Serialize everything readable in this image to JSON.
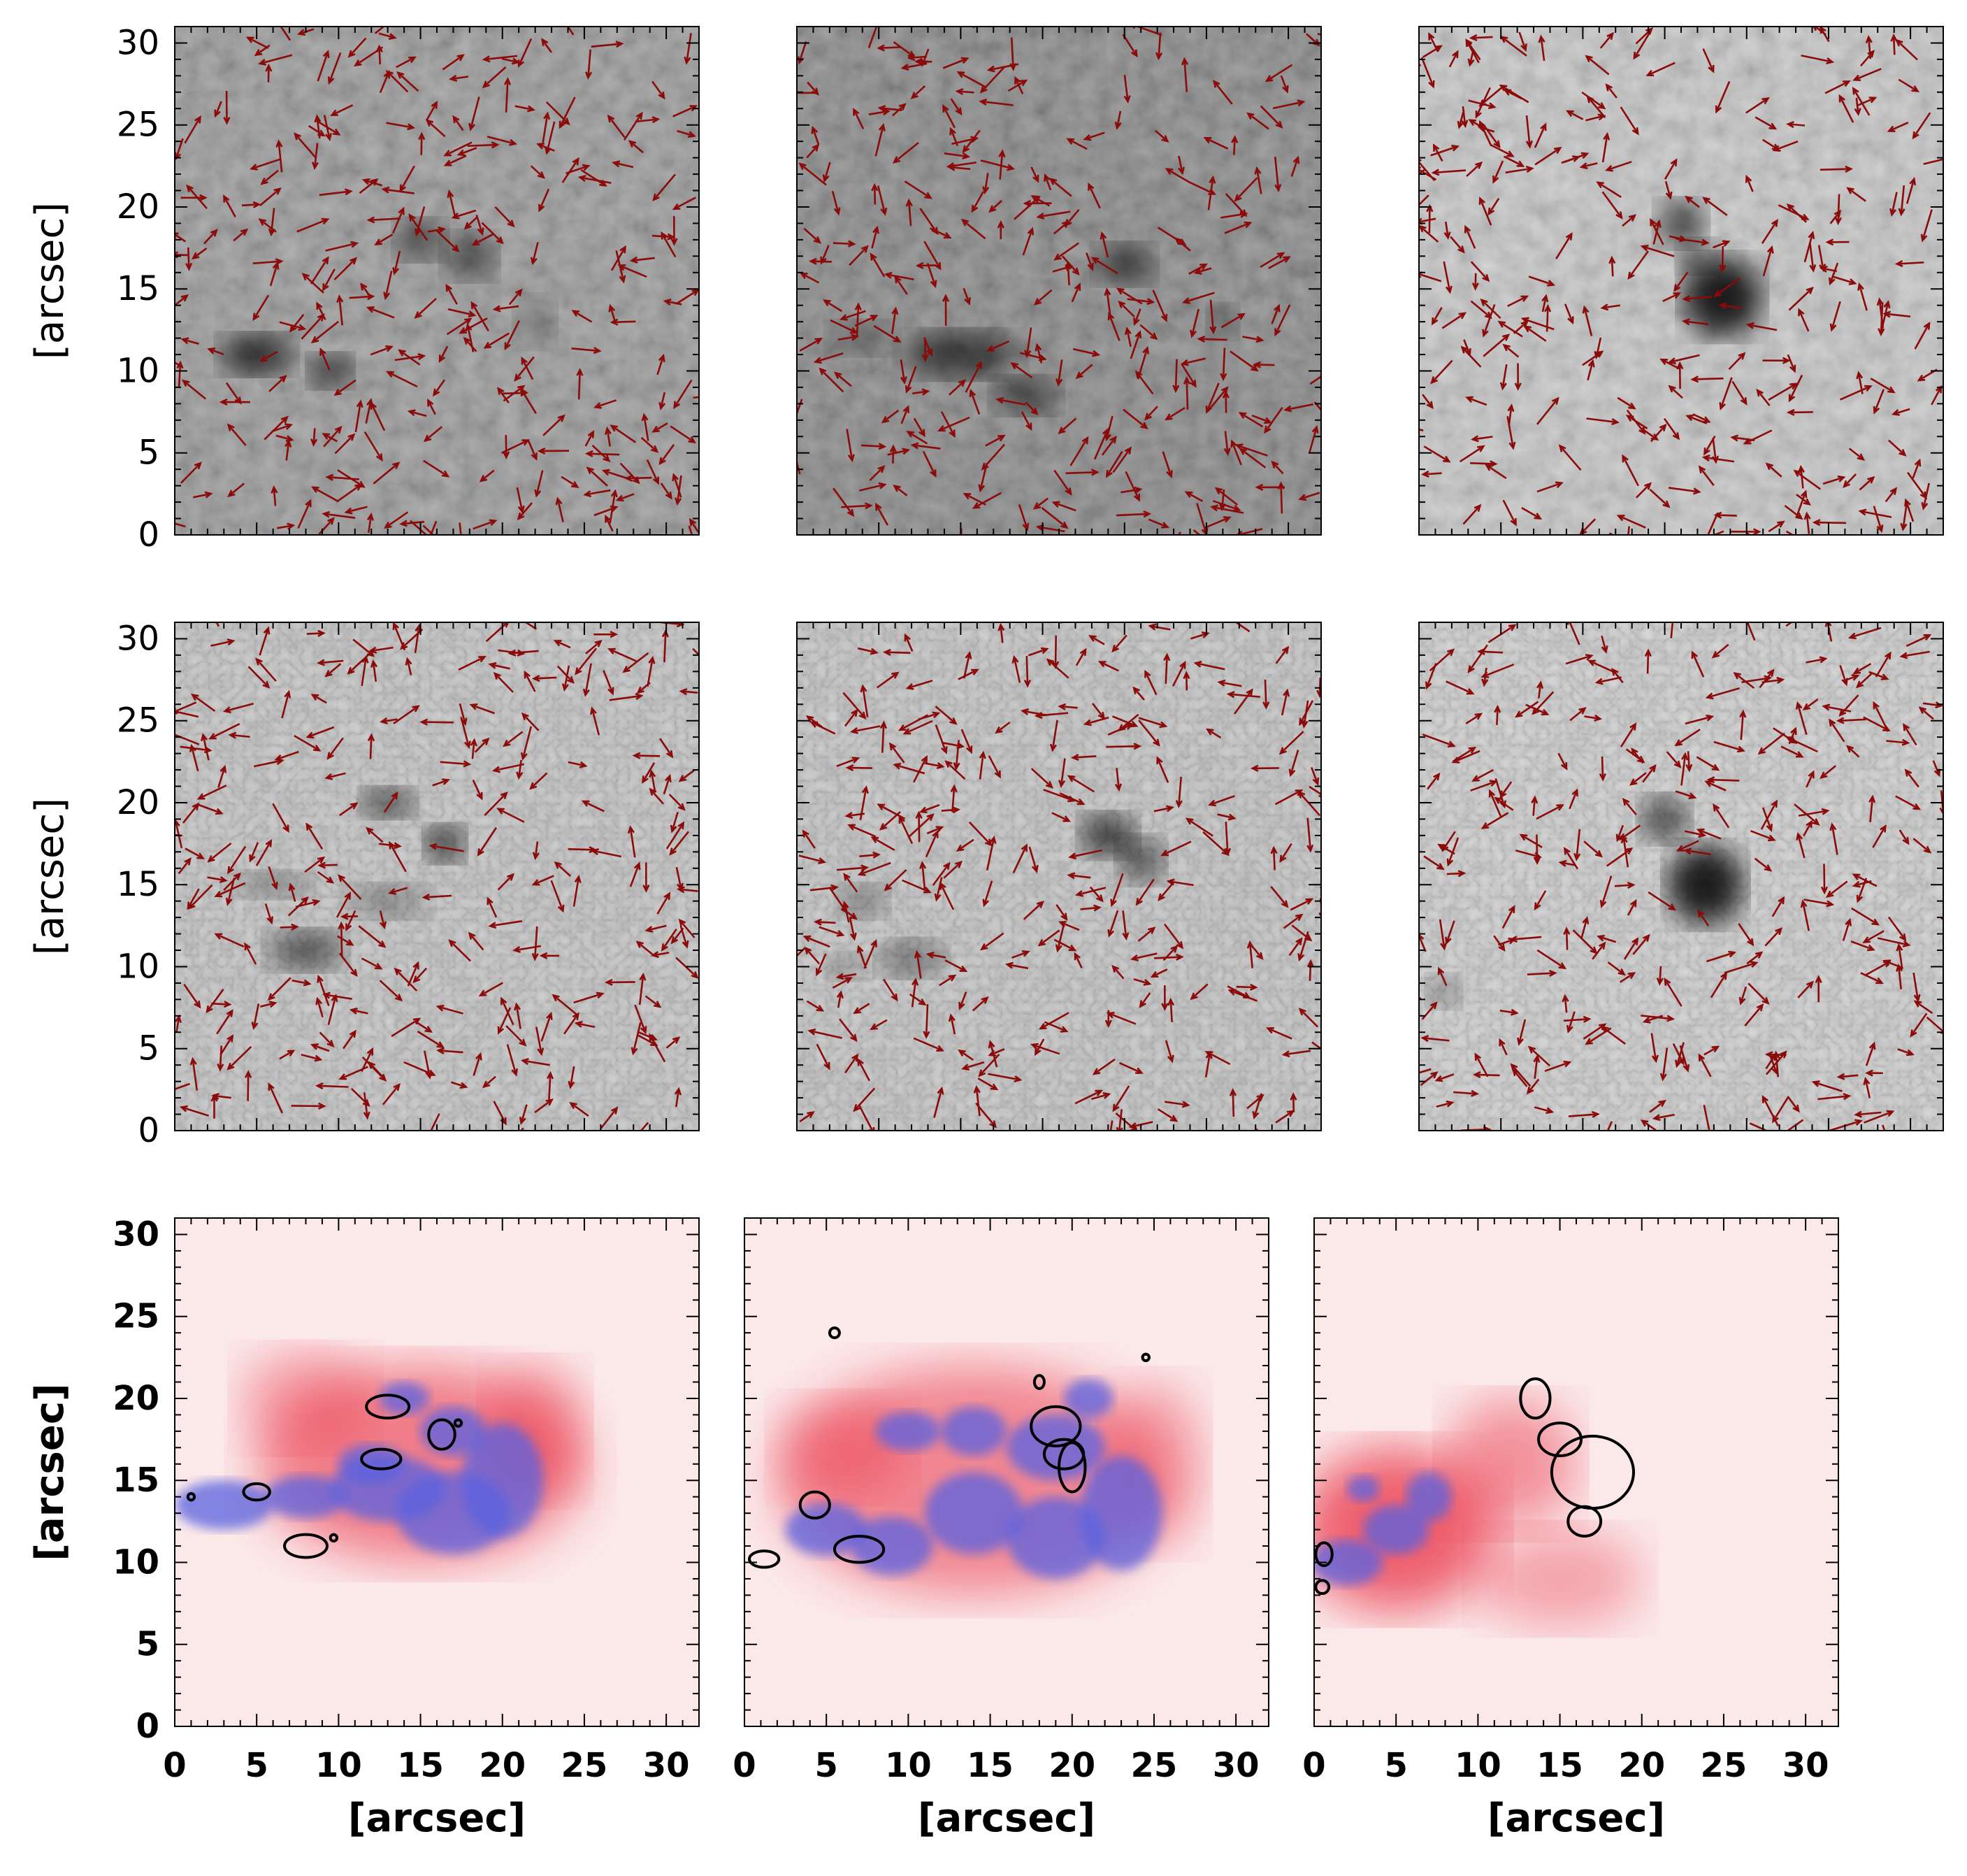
{
  "figure": {
    "axis_label": "[arcsec]"
  },
  "chart_data": [
    {
      "type": "heatmap",
      "panel": "row1-col1",
      "colormap": "grayscale",
      "overlay": "dark red arrows",
      "xlim": [
        0,
        32
      ],
      "ylim": [
        0,
        31
      ],
      "yticks": [
        0,
        5,
        10,
        15,
        20,
        25,
        30
      ],
      "ylabel": "[arcsec]"
    },
    {
      "type": "heatmap",
      "panel": "row1-col2",
      "colormap": "grayscale",
      "overlay": "dark red arrows",
      "xlim": [
        0,
        32
      ],
      "ylim": [
        0,
        31
      ]
    },
    {
      "type": "heatmap",
      "panel": "row1-col3",
      "colormap": "grayscale",
      "overlay": "dark red arrows",
      "xlim": [
        0,
        32
      ],
      "ylim": [
        0,
        31
      ]
    },
    {
      "type": "heatmap",
      "panel": "row2-col1",
      "colormap": "grayscale",
      "overlay": "dark red arrows",
      "xlim": [
        0,
        32
      ],
      "ylim": [
        0,
        31
      ],
      "yticks": [
        0,
        5,
        10,
        15,
        20,
        25,
        30
      ],
      "ylabel": "[arcsec]"
    },
    {
      "type": "heatmap",
      "panel": "row2-col2",
      "colormap": "grayscale",
      "overlay": "dark red arrows",
      "xlim": [
        0,
        32
      ],
      "ylim": [
        0,
        31
      ]
    },
    {
      "type": "heatmap",
      "panel": "row2-col3",
      "colormap": "grayscale",
      "overlay": "dark red arrows",
      "xlim": [
        0,
        32
      ],
      "ylim": [
        0,
        31
      ]
    },
    {
      "type": "heatmap",
      "panel": "row3-col1",
      "colormap": "blue-white-red",
      "overlay": "black contours",
      "xlim": [
        0,
        32
      ],
      "ylim": [
        0,
        31
      ],
      "xticks": [
        0,
        5,
        10,
        15,
        20,
        25,
        30
      ],
      "yticks": [
        0,
        5,
        10,
        15,
        20,
        25,
        30
      ],
      "xlabel": "[arcsec]",
      "ylabel": "[arcsec]"
    },
    {
      "type": "heatmap",
      "panel": "row3-col2",
      "colormap": "blue-white-red",
      "overlay": "black contours",
      "xlim": [
        0,
        32
      ],
      "ylim": [
        0,
        31
      ],
      "xticks": [
        0,
        5,
        10,
        15,
        20,
        25,
        30
      ],
      "xlabel": "[arcsec]"
    },
    {
      "type": "heatmap",
      "panel": "row3-col3",
      "colormap": "blue-white-red",
      "overlay": "black contours",
      "xlim": [
        0,
        32
      ],
      "ylim": [
        0,
        31
      ],
      "xticks": [
        0,
        5,
        10,
        15,
        20,
        25,
        30
      ],
      "xlabel": "[arcsec]"
    }
  ],
  "colors": {
    "arrow": "#8b0a0a",
    "contour": "#000000",
    "positive": "#e8283a",
    "negative": "#5a62e0"
  }
}
